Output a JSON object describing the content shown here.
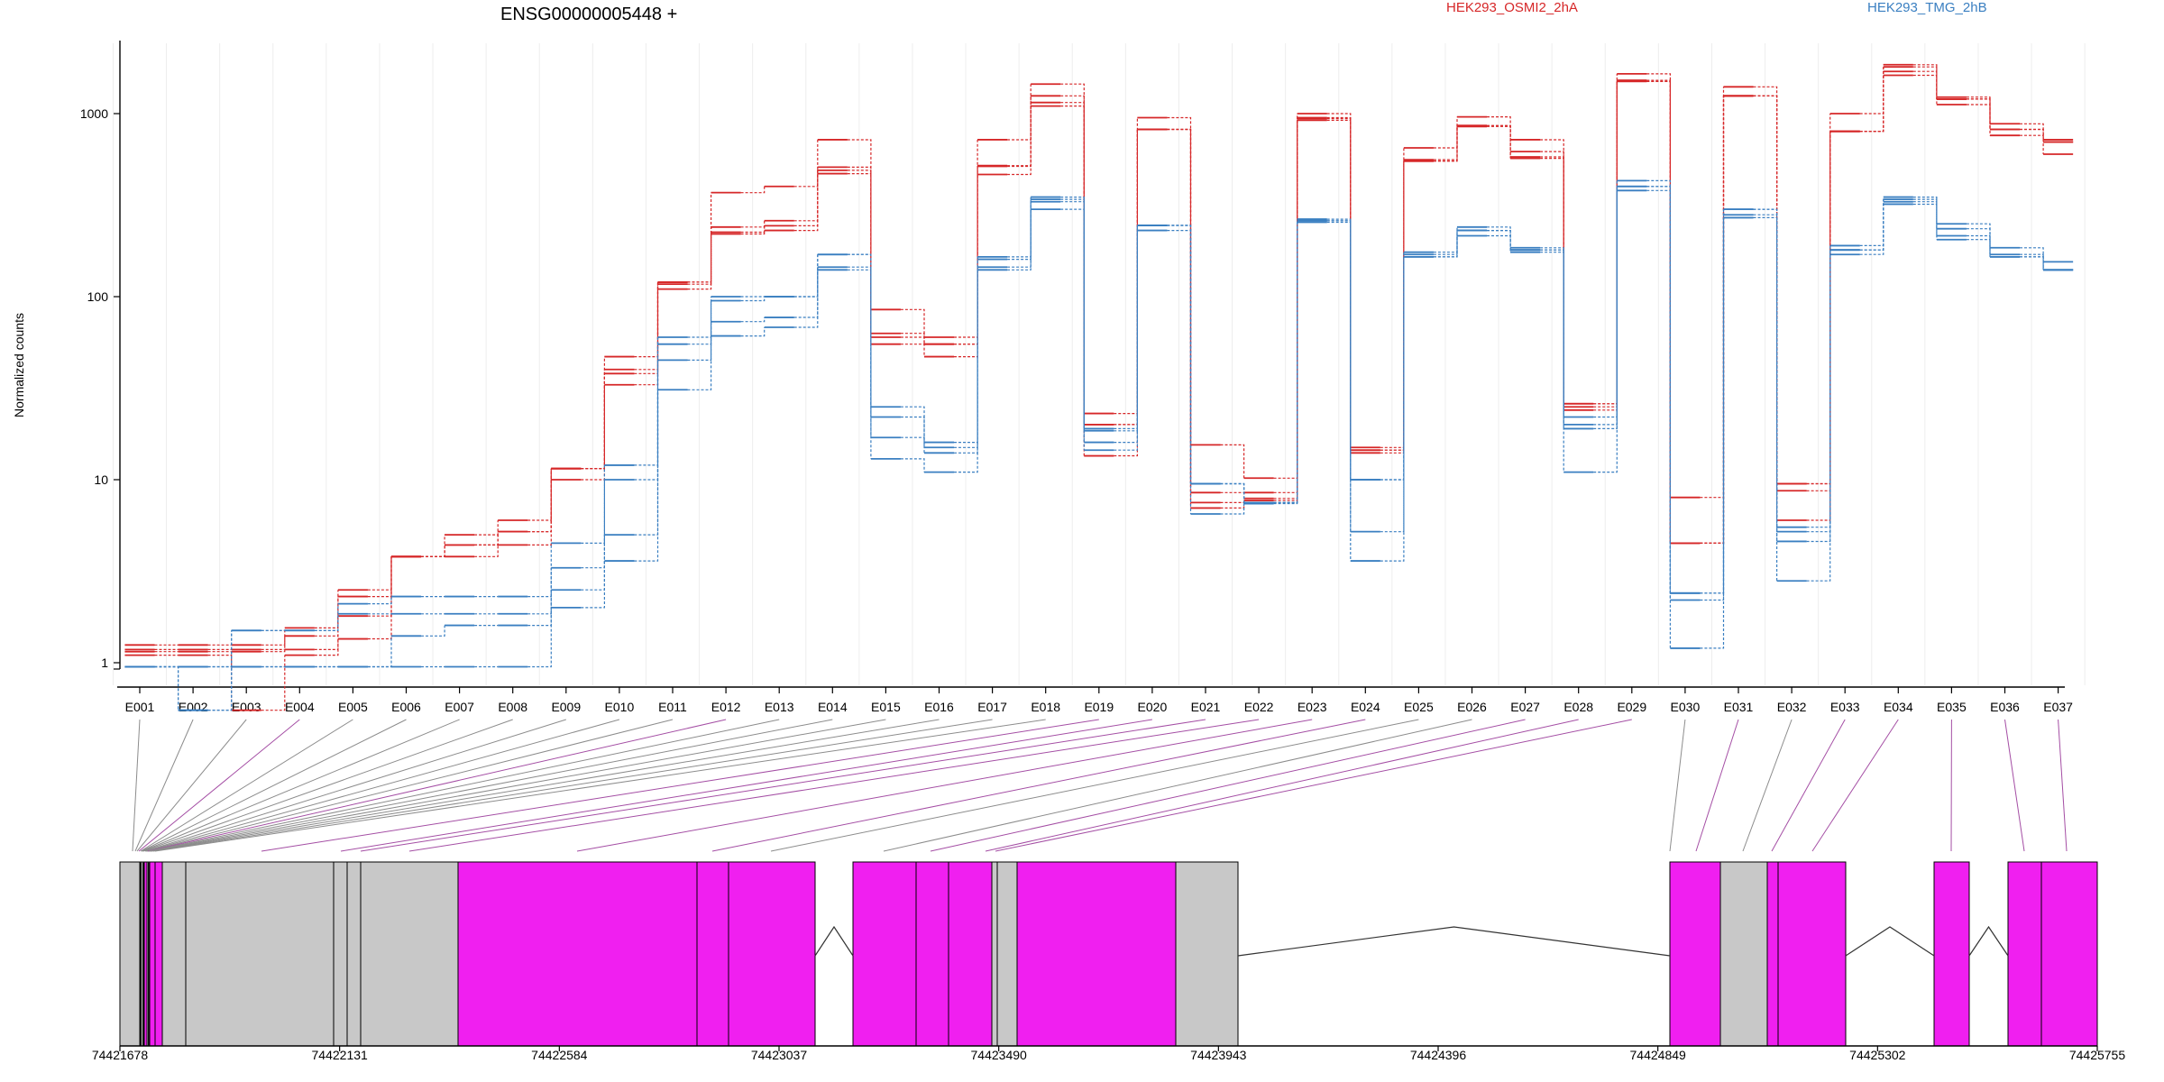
{
  "title": "ENSG00000005448 +",
  "legend": [
    {
      "name": "HEK293_OSMI2_2hA",
      "color": "#d62728"
    },
    {
      "name": "HEK293_TMG_2hB",
      "color": "#3a7fc1"
    }
  ],
  "colors": {
    "red": "#d62728",
    "blue": "#3a7fc1",
    "magenta": "#f01ff0",
    "grey": "#c8c8c8",
    "purple_link": "#a44ea4",
    "grey_link": "#8c8c8c"
  },
  "chart_data": {
    "type": "line",
    "y_scale": "log",
    "ylabel": "Normalized counts",
    "ylim": [
      0.5,
      2500
    ],
    "yticks": [
      1,
      10,
      100,
      1000
    ],
    "categories": [
      "E001",
      "E002",
      "E003",
      "E004",
      "E005",
      "E006",
      "E007",
      "E008",
      "E009",
      "E010",
      "E011",
      "E012",
      "E013",
      "E014",
      "E015",
      "E016",
      "E017",
      "E018",
      "E019",
      "E020",
      "E021",
      "E022",
      "E023",
      "E024",
      "E025",
      "E026",
      "E027",
      "E028",
      "E029",
      "E030",
      "E031",
      "E032",
      "E033",
      "E034",
      "E035",
      "E036",
      "E037"
    ],
    "series": [
      {
        "name": "HEK293_OSMI2_2hA",
        "color": "red",
        "values": [
          1.15,
          1.15,
          1.15,
          1.4,
          1.8,
          3.8,
          4.4,
          5.2,
          11.5,
          40,
          117,
          225,
          244,
          470,
          60,
          55,
          465,
          1100,
          20,
          820,
          7.5,
          7.9,
          920,
          14,
          550,
          860,
          570,
          25,
          1500,
          4.5,
          1250,
          8.7,
          800,
          1700,
          1200,
          820,
          700
        ]
      },
      {
        "name": "HEK293_OSMI2_2hA",
        "color": "red",
        "values": [
          1.25,
          1.25,
          1.25,
          1.55,
          2.3,
          3.8,
          5,
          6,
          11.5,
          47,
          120,
          240,
          260,
          510,
          63,
          60,
          520,
          1250,
          20,
          820,
          8.5,
          8.5,
          950,
          14.5,
          550,
          860,
          620,
          26,
          1500,
          4.5,
          1250,
          9.5,
          800,
          1800,
          1200,
          820,
          700
        ]
      },
      {
        "name": "HEK293_OSMI2_2hA",
        "color": "red",
        "values": [
          1.1,
          1.1,
          0.55,
          1.1,
          1.35,
          3.8,
          3.8,
          4.4,
          10,
          33,
          110,
          220,
          230,
          490,
          55,
          47,
          515,
          1150,
          13.5,
          820,
          7,
          7.7,
          940,
          14.5,
          560,
          850,
          580,
          24,
          1520,
          4.5,
          1250,
          6,
          800,
          1620,
          1120,
          760,
          600
        ]
      },
      {
        "name": "HEK293_OSMI2_2hA",
        "color": "red",
        "values": [
          1.18,
          1.18,
          1.18,
          1.18,
          2.5,
          3.8,
          4.4,
          5.2,
          11.5,
          38,
          120,
          370,
          400,
          720,
          85,
          55,
          720,
          1450,
          23,
          950,
          15.5,
          10.2,
          1000,
          15,
          650,
          960,
          720,
          26,
          1650,
          8,
          1400,
          9.5,
          1000,
          1850,
          1230,
          880,
          720
        ]
      },
      {
        "name": "HEK293_TMG_2hB",
        "color": "blue",
        "values": [
          0.95,
          0.55,
          0.95,
          0.95,
          0.95,
          0.95,
          0.95,
          0.95,
          2.5,
          3.6,
          31,
          61,
          68,
          145,
          17,
          14,
          145,
          300,
          16,
          230,
          9.5,
          7.4,
          255,
          5.2,
          165,
          215,
          175,
          11,
          380,
          2.2,
          270,
          5.2,
          170,
          320,
          205,
          165,
          140
        ]
      },
      {
        "name": "HEK293_TMG_2hB",
        "color": "blue",
        "values": [
          0.95,
          0.55,
          0.95,
          0.95,
          0.95,
          1.4,
          1.6,
          1.6,
          2,
          5,
          45,
          73,
          77,
          140,
          13,
          11,
          140,
          330,
          14.5,
          245,
          6.5,
          7.5,
          265,
          3.6,
          170,
          230,
          180,
          19,
          400,
          1.2,
          300,
          2.8,
          180,
          330,
          215,
          170,
          140
        ]
      },
      {
        "name": "HEK293_TMG_2hB",
        "color": "blue",
        "values": [
          0.95,
          0.95,
          1.5,
          1.5,
          1.85,
          1.85,
          1.85,
          1.85,
          3.3,
          10,
          55,
          95,
          100,
          170,
          22,
          15,
          160,
          340,
          18.5,
          245,
          9.5,
          7.5,
          260,
          10,
          165,
          230,
          180,
          20,
          400,
          2.4,
          280,
          4.6,
          180,
          340,
          235,
          165,
          140
        ]
      },
      {
        "name": "HEK293_TMG_2hB",
        "color": "blue",
        "values": [
          0.95,
          0.95,
          1.5,
          1.5,
          2.1,
          2.3,
          2.3,
          2.3,
          4.5,
          12,
          60,
          100,
          100,
          170,
          25,
          16,
          165,
          350,
          19,
          245,
          9.5,
          7.5,
          260,
          10,
          175,
          240,
          185,
          22,
          430,
          2.4,
          300,
          5.5,
          190,
          350,
          250,
          185,
          155
        ]
      }
    ]
  },
  "gene_model": {
    "coord_ticks": [
      "74421678",
      "74422131",
      "74422584",
      "74423037",
      "74423490",
      "74423943",
      "74424396",
      "74424849",
      "74425302",
      "74425755"
    ],
    "link_purple": [
      3,
      11,
      18,
      19,
      20,
      21,
      22,
      23,
      26,
      27,
      28,
      30,
      32,
      33,
      34,
      35,
      36
    ]
  }
}
